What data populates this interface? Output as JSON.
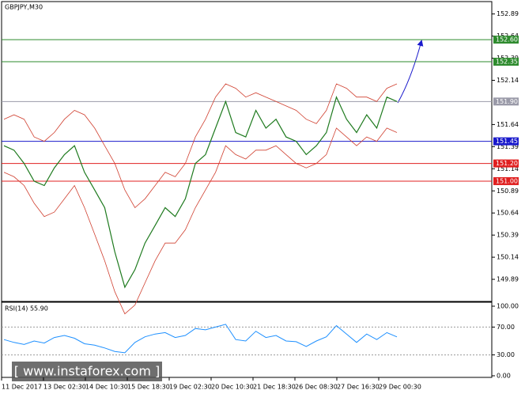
{
  "chart_data": {
    "type": "line",
    "title": "GBPJPY,M30",
    "watermark": "[ www.instaforex.com ]",
    "ylim": [
      149.64,
      153.03
    ],
    "yticks": [
      152.89,
      152.64,
      152.39,
      152.14,
      151.64,
      151.39,
      151.14,
      150.89,
      150.64,
      150.39,
      150.14,
      149.89
    ],
    "levels": [
      {
        "value": 152.6,
        "label": "152.60",
        "color": "#2e8b2e"
      },
      {
        "value": 152.35,
        "label": "152.35",
        "color": "#2e8b2e"
      },
      {
        "value": 151.9,
        "label": "151.90",
        "color": "#9a9aa8"
      },
      {
        "value": 151.45,
        "label": "151.45",
        "color": "#1a1acc"
      },
      {
        "value": 151.2,
        "label": "151.20",
        "color": "#e02020"
      },
      {
        "value": 151.0,
        "label": "151.00",
        "color": "#e02020"
      }
    ],
    "x_labels": [
      "11 Dec 2017",
      "13 Dec 02:30",
      "14 Dec 10:30",
      "15 Dec 18:30",
      "19 Dec 02:30",
      "20 Dec 10:30",
      "21 Dec 18:30",
      "26 Dec 08:30",
      "27 Dec 16:30",
      "29 Dec 00:30"
    ],
    "series": [
      {
        "name": "Close",
        "color": "#1e7a1e",
        "values": [
          151.4,
          151.35,
          151.2,
          151.0,
          150.95,
          151.15,
          151.3,
          151.4,
          151.1,
          150.9,
          150.7,
          150.2,
          149.8,
          150.0,
          150.3,
          150.5,
          150.7,
          150.6,
          150.8,
          151.2,
          151.3,
          151.6,
          151.9,
          151.55,
          151.5,
          151.8,
          151.6,
          151.7,
          151.5,
          151.45,
          151.3,
          151.4,
          151.55,
          151.95,
          151.7,
          151.55,
          151.75,
          151.6,
          151.95,
          151.9
        ]
      },
      {
        "name": "Upper band",
        "color": "#d04030",
        "values": [
          151.7,
          151.75,
          151.7,
          151.5,
          151.45,
          151.55,
          151.7,
          151.8,
          151.75,
          151.6,
          151.4,
          151.2,
          150.9,
          150.7,
          150.8,
          150.95,
          151.1,
          151.05,
          151.2,
          151.5,
          151.7,
          151.95,
          152.1,
          152.05,
          151.95,
          152.0,
          151.95,
          151.9,
          151.85,
          151.8,
          151.7,
          151.65,
          151.8,
          152.1,
          152.05,
          151.95,
          151.95,
          151.9,
          152.05,
          152.1
        ]
      },
      {
        "name": "Lower band",
        "color": "#d04030",
        "values": [
          151.1,
          151.05,
          150.95,
          150.75,
          150.6,
          150.65,
          150.8,
          150.95,
          150.7,
          150.4,
          150.1,
          149.75,
          149.5,
          149.6,
          149.85,
          150.1,
          150.3,
          150.3,
          150.45,
          150.7,
          150.9,
          151.1,
          151.4,
          151.3,
          151.25,
          151.35,
          151.35,
          151.4,
          151.3,
          151.2,
          151.15,
          151.2,
          151.3,
          151.6,
          151.5,
          151.4,
          151.5,
          151.45,
          151.6,
          151.55
        ]
      }
    ],
    "rsi": {
      "title": "RSI(14) 55.90",
      "ylim": [
        -2.3,
        105.7
      ],
      "yticks": [
        {
          "value": 100,
          "label": "100.00"
        },
        {
          "value": 70,
          "label": "70.00"
        },
        {
          "value": 30,
          "label": "30.00"
        },
        {
          "value": 0,
          "label": "0.00"
        }
      ],
      "color": "#1e90ff",
      "values": [
        52,
        48,
        45,
        50,
        47,
        55,
        58,
        54,
        46,
        44,
        40,
        35,
        33,
        48,
        56,
        60,
        62,
        55,
        58,
        68,
        66,
        70,
        74,
        52,
        50,
        64,
        55,
        58,
        50,
        49,
        42,
        50,
        56,
        72,
        60,
        48,
        60,
        52,
        62,
        55.9
      ]
    }
  }
}
